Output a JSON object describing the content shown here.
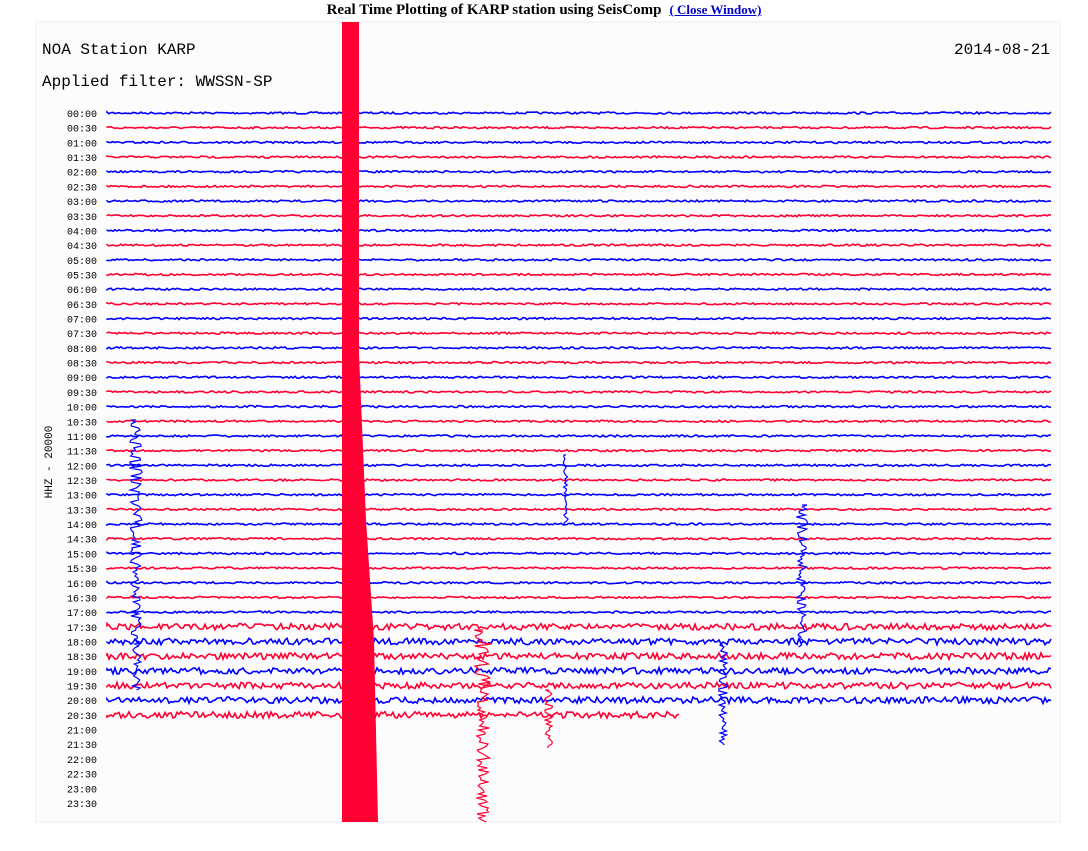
{
  "header": {
    "title": "Real Time Plotting of KARP station using SeisComp",
    "link": "( Close Window)"
  },
  "plot": {
    "station": "NOA Station KARP",
    "filter": "Applied filter: WWSSN-SP",
    "date": "2014-08-21",
    "channel": "HHZ - 20000",
    "times": [
      "00:00",
      "00:30",
      "01:00",
      "01:30",
      "02:00",
      "02:30",
      "03:00",
      "03:30",
      "04:00",
      "04:30",
      "05:00",
      "05:30",
      "06:00",
      "06:30",
      "07:00",
      "07:30",
      "08:00",
      "08:30",
      "09:00",
      "09:30",
      "10:00",
      "10:30",
      "11:00",
      "11:30",
      "12:00",
      "12:30",
      "13:00",
      "13:30",
      "14:00",
      "14:30",
      "15:00",
      "15:30",
      "16:00",
      "16:30",
      "17:00",
      "17:30",
      "18:00",
      "18:30",
      "19:00",
      "19:30",
      "20:00",
      "20:30",
      "21:00",
      "21:30",
      "22:00",
      "22:30",
      "23:00",
      "23:30"
    ]
  }
}
